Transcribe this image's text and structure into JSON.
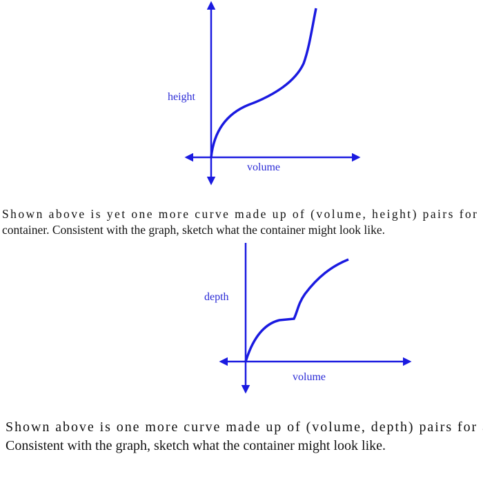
{
  "figures": [
    {
      "y_label": "height",
      "x_label": "volume",
      "caption": [
        "Shown above is yet one more curve made up of (volume, height) pairs for a",
        "container.  Consistent with the graph, sketch what the container might look like."
      ]
    },
    {
      "y_label": "depth",
      "x_label": "volume",
      "caption": [
        "Shown above is one more curve made up of (volume, depth) pairs for a",
        "Consistent with the graph, sketch what the container might look like."
      ]
    }
  ]
}
